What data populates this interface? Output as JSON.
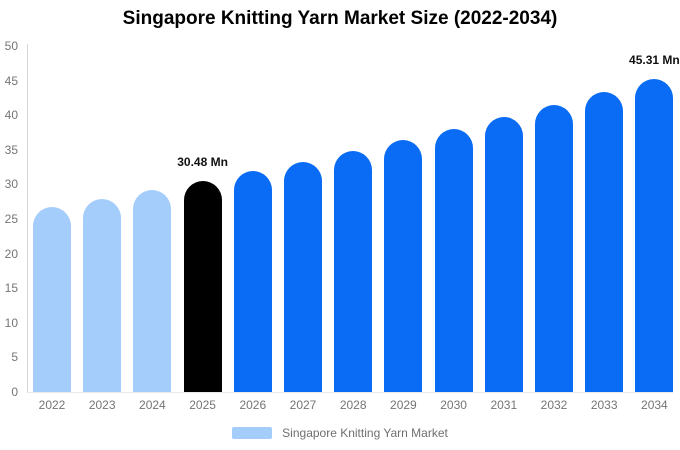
{
  "title": "Singapore Knitting Yarn Market Size (2022-2034)",
  "legend": {
    "label": "Singapore Knitting Yarn Market",
    "swatch_color": "#a5cdfb"
  },
  "colors": {
    "historical": "#a5cdfb",
    "base_year": "#000000",
    "forecast": "#0a6cf5",
    "axis_text": "#757575",
    "axis_line": "#d6d6d6",
    "baseline_line": "#e9e9e9",
    "annotation_text": "#111111",
    "legend_text": "#6f6f6f",
    "title_text": "#000000",
    "background": "#ffffff"
  },
  "axes": {
    "y_ticks": [
      "0",
      "5",
      "10",
      "15",
      "20",
      "25",
      "30",
      "35",
      "40",
      "45",
      "50"
    ],
    "x_labels": [
      "2022",
      "2023",
      "2024",
      "2025",
      "2026",
      "2027",
      "2028",
      "2029",
      "2030",
      "2031",
      "2032",
      "2033",
      "2034"
    ]
  },
  "chart_data": {
    "type": "bar",
    "title": "Singapore Knitting Yarn Market Size (2022-2034)",
    "xlabel": "",
    "ylabel": "",
    "unit": "Mn",
    "ylim": [
      0,
      50
    ],
    "ytick_step": 5,
    "grid": false,
    "legend_position": "bottom",
    "categories": [
      "2022",
      "2023",
      "2024",
      "2025",
      "2026",
      "2027",
      "2028",
      "2029",
      "2030",
      "2031",
      "2032",
      "2033",
      "2034"
    ],
    "series": [
      {
        "name": "Singapore Knitting Yarn Market",
        "values": [
          26.7,
          27.9,
          29.2,
          30.48,
          31.9,
          33.3,
          34.8,
          36.4,
          38.0,
          39.7,
          41.5,
          43.4,
          45.31
        ]
      }
    ],
    "bars": [
      {
        "year": "2022",
        "value": 26.7,
        "role": "historical"
      },
      {
        "year": "2023",
        "value": 27.9,
        "role": "historical"
      },
      {
        "year": "2024",
        "value": 29.2,
        "role": "historical"
      },
      {
        "year": "2025",
        "value": 30.48,
        "role": "base_year",
        "data_label": "30.48 Mn"
      },
      {
        "year": "2026",
        "value": 31.9,
        "role": "forecast"
      },
      {
        "year": "2027",
        "value": 33.3,
        "role": "forecast"
      },
      {
        "year": "2028",
        "value": 34.8,
        "role": "forecast"
      },
      {
        "year": "2029",
        "value": 36.4,
        "role": "forecast"
      },
      {
        "year": "2030",
        "value": 38.0,
        "role": "forecast"
      },
      {
        "year": "2031",
        "value": 39.7,
        "role": "forecast"
      },
      {
        "year": "2032",
        "value": 41.5,
        "role": "forecast"
      },
      {
        "year": "2033",
        "value": 43.4,
        "role": "forecast"
      },
      {
        "year": "2034",
        "value": 45.31,
        "role": "forecast",
        "data_label": "45.31 Mn"
      }
    ],
    "annotations": [
      {
        "category": "2025",
        "text": "30.48 Mn"
      },
      {
        "category": "2034",
        "text": "45.31 Mn"
      }
    ]
  }
}
